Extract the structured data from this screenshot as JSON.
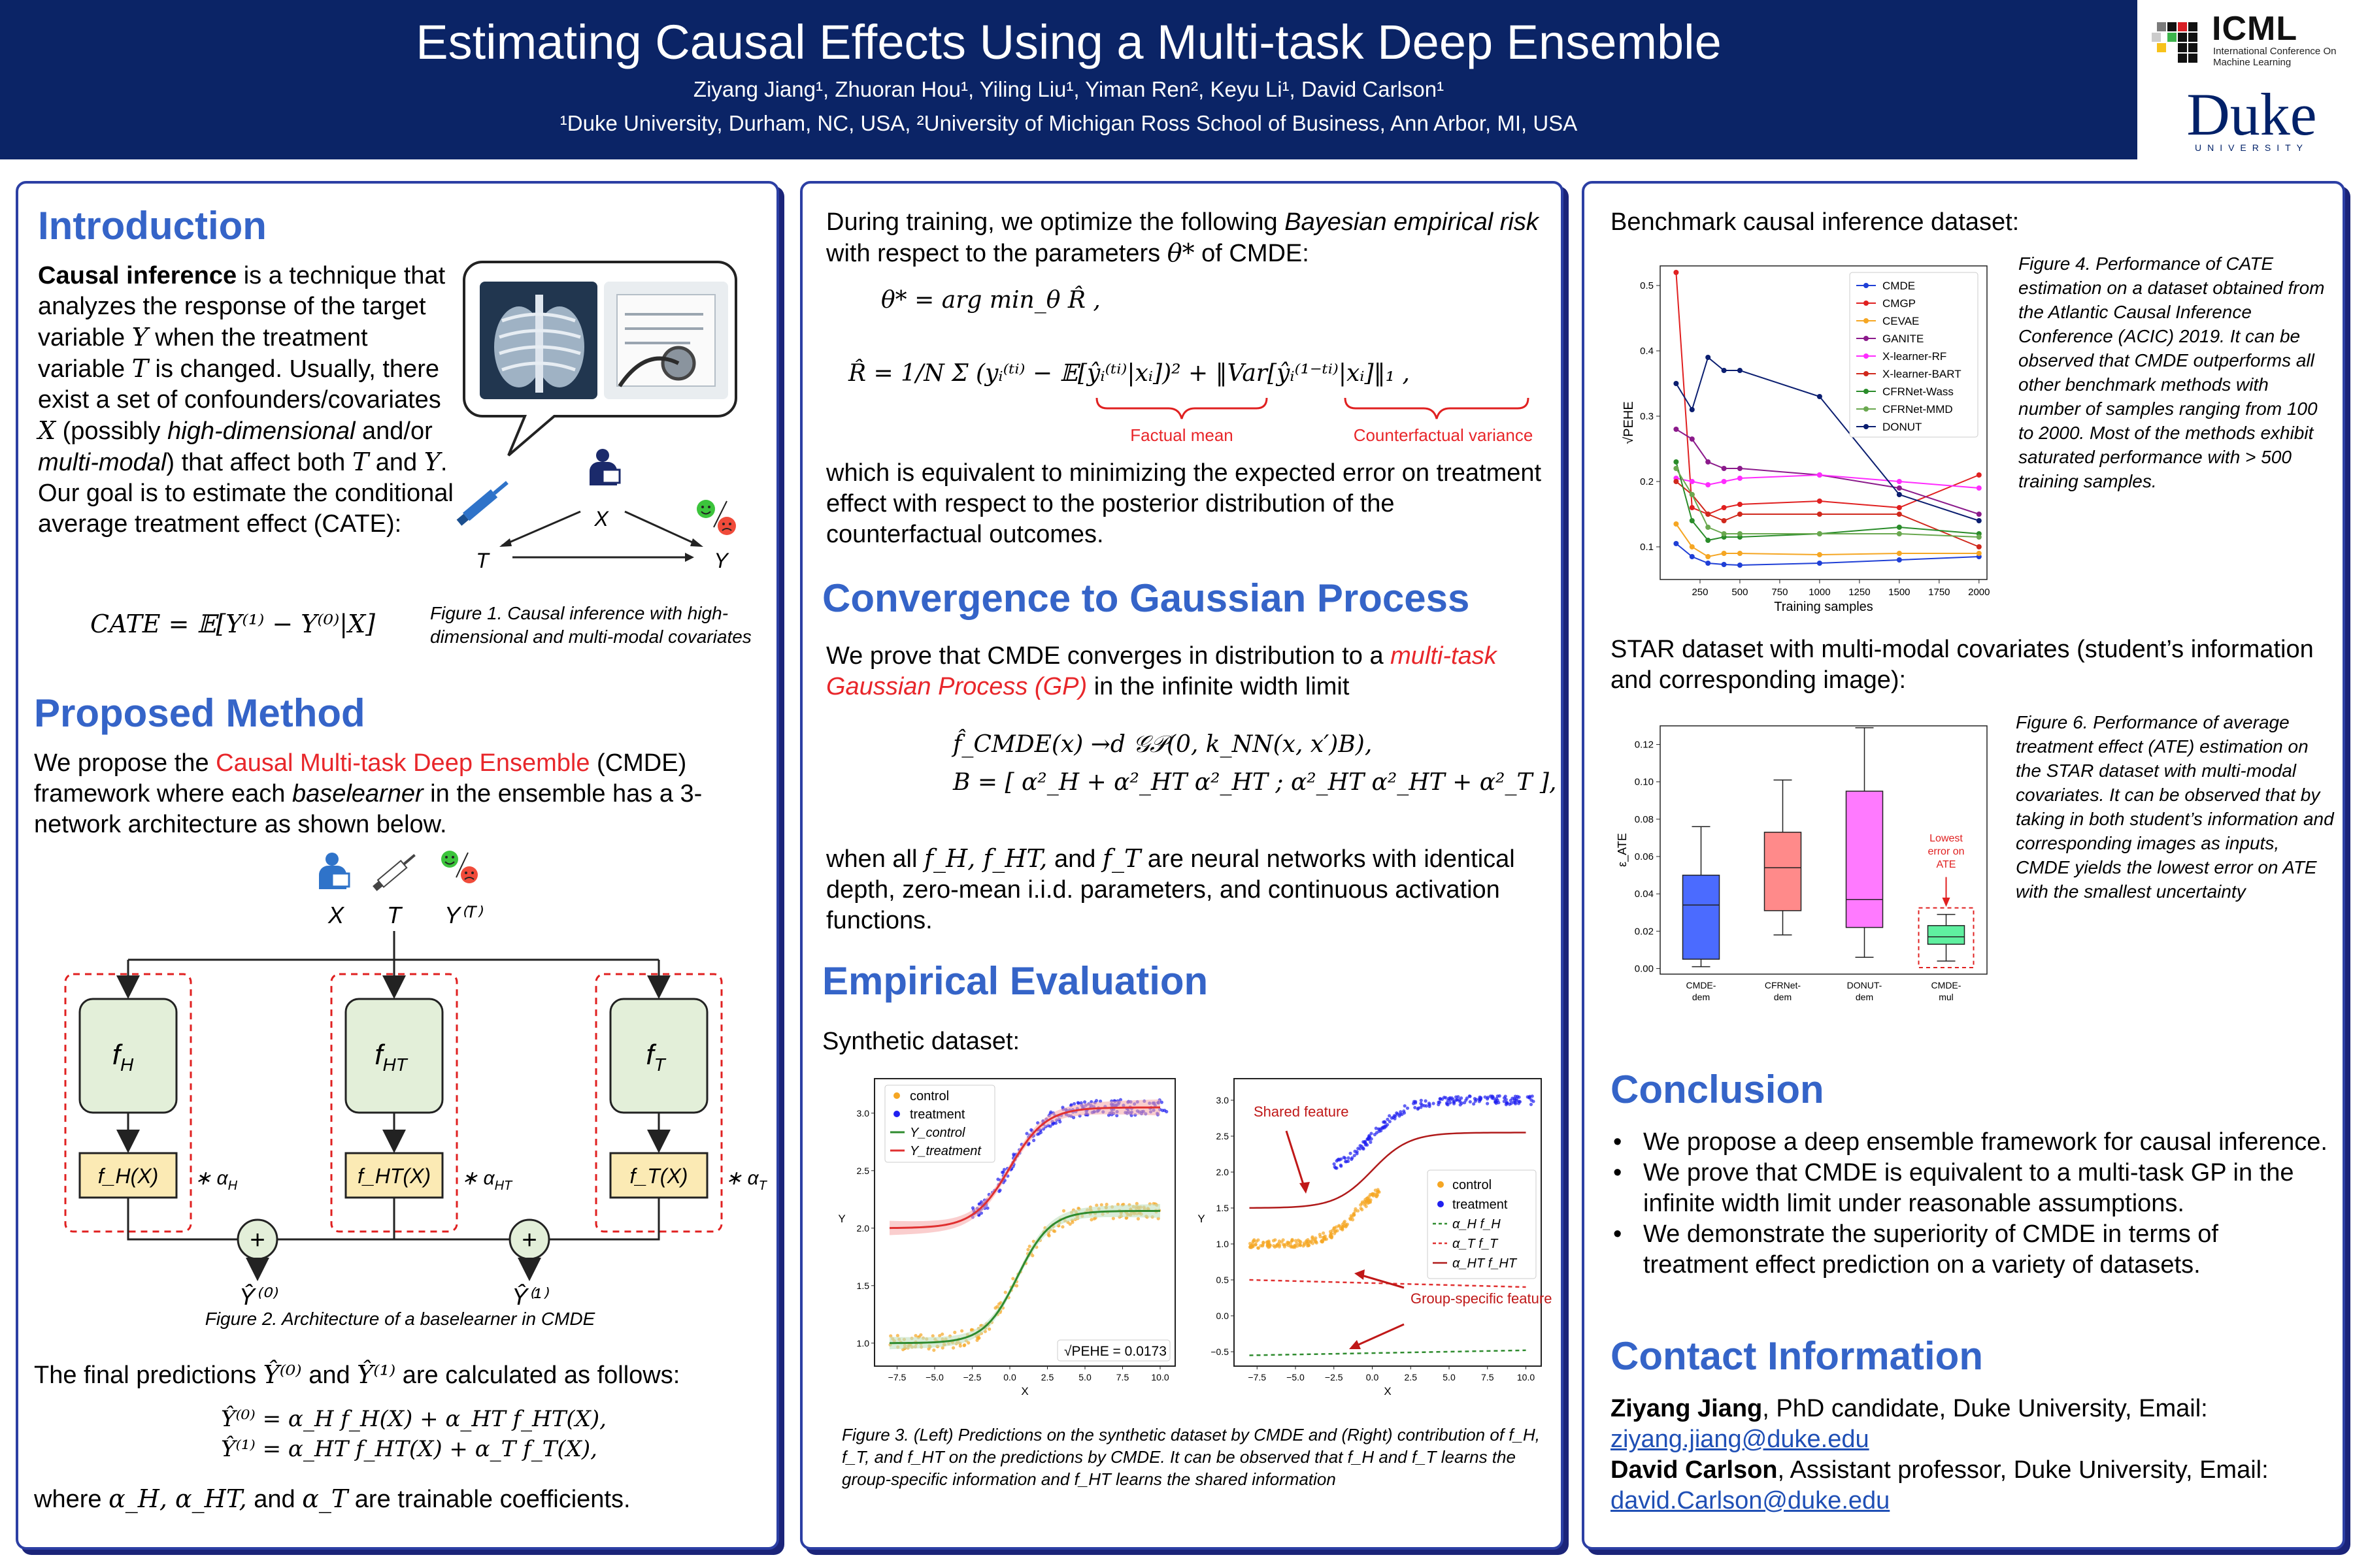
{
  "header": {
    "title": "Estimating Causal Effects Using a Multi-task Deep Ensemble",
    "authors": "Ziyang Jiang¹, Zhuoran Hou¹, Yiling Liu¹, Yiman Ren², Keyu Li¹, David Carlson¹",
    "affiliations": "¹Duke University, Durham, NC, USA, ²University of Michigan Ross School of Business, Ann Arbor, MI, USA",
    "icml_word": "ICML",
    "icml_sub": "International Conference On Machine Learning",
    "duke_word": "Duke",
    "duke_sub": "UNIVERSITY"
  },
  "col1": {
    "intro_heading": "Introduction",
    "intro_bold": "Causal inference",
    "intro_p1": " is a technique that analyzes the response of the target variable ",
    "intro_Y": "Y",
    "intro_p2": " when the treatment variable ",
    "intro_T": "T",
    "intro_p3": " is changed. Usually, there exist a set of confounders/covariates ",
    "intro_X": "X",
    "intro_p4": " (possibly ",
    "intro_hd": "high-dimensional",
    "intro_p5": " and/or ",
    "intro_mm": "multi-modal",
    "intro_p6": ") that affect both ",
    "intro_p7": " and ",
    "intro_p8": ". Our goal is to estimate the conditional average treatment effect (CATE):",
    "cate_eq": "CATE = 𝔼[Y⁽¹⁾ − Y⁽⁰⁾|X]",
    "fig1_X": "X",
    "fig1_T": "T",
    "fig1_Y": "Y",
    "fig1_caption": "Figure 1. Causal inference with high-dimensional and multi-modal covariates",
    "method_heading": "Proposed Method",
    "method_p1": "We propose the ",
    "method_red": "Causal Multi-task Deep Ensemble",
    "method_p2": " (CMDE) framework where each ",
    "method_it": "baselearner",
    "method_p3": " in the ensemble has a 3-network architecture as shown below.",
    "arch_X": "X",
    "arch_T": "T",
    "arch_YT": "Y⁽ᵀ⁾",
    "net_fH": "f",
    "net_fH_sub": "H",
    "net_fHT": "f",
    "net_fHT_sub": "HT",
    "net_fT": "f",
    "net_fT_sub": "T",
    "out_fH": "f_H(X)",
    "out_fHT": "f_HT(X)",
    "out_fT": "f_T(X)",
    "coef_H": "∗ α",
    "coef_H_sub": "H",
    "coef_HT": "∗ α",
    "coef_HT_sub": "HT",
    "coef_T": "∗ α",
    "coef_T_sub": "T",
    "plus": "+",
    "y0": "Ŷ⁽⁰⁾",
    "y1": "Ŷ⁽¹⁾",
    "fig2_caption": "Figure 2. Architecture of a baselearner in CMDE",
    "final_p1": "The final predictions ",
    "final_y0": "Ŷ⁽⁰⁾",
    "final_and": " and ",
    "final_y1": "Ŷ⁽¹⁾",
    "final_p2": " are calculated as follows:",
    "eq_y0": "Ŷ⁽⁰⁾ = α_H f_H(X) + α_HT f_HT(X),",
    "eq_y1": "Ŷ⁽¹⁾ = α_HT f_HT(X) + α_T f_T(X),",
    "where_p1": "where ",
    "where_coefs": "α_H, α_HT,",
    "where_p2": " and ",
    "where_aT": "α_T",
    "where_p3": " are trainable coefficients."
  },
  "col2": {
    "train_p1": "During training, we optimize the following ",
    "train_it": "Bayesian empirical risk",
    "train_p2": " with respect to the parameters ",
    "train_theta": "θ*",
    "train_p3": " of CMDE:",
    "eq_theta": "θ* = arg min_θ R̂ ,",
    "eq_risk_lhs": "R̂ = 1/N Σ (yᵢ⁽ᵗⁱ⁾ − 𝔼[ŷᵢ⁽ᵗⁱ⁾|xᵢ])² + ‖Var[ŷᵢ⁽¹⁻ᵗⁱ⁾|xᵢ]‖₁ ,",
    "factual_mean": "Factual mean",
    "counterfactual_variance": "Counterfactual variance",
    "equiv_text": "which is equivalent to minimizing the expected error on treatment effect with respect to the posterior distribution of the counterfactual outcomes.",
    "gp_heading": "Convergence to Gaussian Process",
    "gp_p1": "We prove that CMDE converges in distribution to a ",
    "gp_red": "multi-task Gaussian Process (GP)",
    "gp_p2": " in the infinite width limit",
    "gp_eq1": "f̂_CMDE(x) →d 𝒢𝒫(0, k_NN(x, x′)B),",
    "gp_eq2": "B = [ α²_H + α²_HT    α²_HT ; α²_HT    α²_HT + α²_T ],",
    "when_p1": "when all ",
    "when_fs": "f_H, f_HT,",
    "when_p2": " and ",
    "when_fT": "f_T",
    "when_p3": " are neural networks with identical depth, zero-mean i.i.d. parameters, and continuous activation functions.",
    "eval_heading": "Empirical Evaluation",
    "synthetic_label": "Synthetic dataset:",
    "plotL_legend": [
      "control",
      "treatment",
      "Y_control",
      "Y_treatment"
    ],
    "plotL_pehe": "√PEHE = 0.0173",
    "plotR_legend": [
      "control",
      "treatment",
      "α_H f_H",
      "α_T f_T",
      "α_HT f_HT"
    ],
    "plotR_shared": "Shared feature",
    "plotR_group": "Group-specific feature",
    "fig3_caption": "Figure 3. (Left) Predictions on the synthetic dataset by CMDE and (Right) contribution of f_H, f_T, and f_HT on the predictions by CMDE. It can be observed that f_H and f_T learns the group-specific information and f_HT learns the shared information"
  },
  "col3": {
    "bench_label": "Benchmark causal inference dataset:",
    "fig4_caption": "Figure 4. Performance of CATE estimation on a dataset obtained from the Atlantic Causal Inference Conference (ACIC) 2019. It can be observed that CMDE outperforms all other benchmark methods with number of samples ranging from 100 to 2000. Most of the methods exhibit saturated performance with > 500 training samples.",
    "star_label": "STAR dataset with multi-modal covariates (student’s information and corresponding image):",
    "fig6_caption": "Figure 6. Performance of average treatment effect (ATE) estimation on the STAR dataset with multi-modal covariates. It can be observed that by taking in both student’s information and corresponding images as inputs, CMDE yields the lowest error on ATE with the smallest uncertainty",
    "lowest_note": "Lowest error on ATE",
    "conclusion_heading": "Conclusion",
    "conclusion_items": [
      "We propose a deep ensemble framework for causal inference.",
      "We prove that CMDE is equivalent to a multi-task GP in the infinite width limit under reasonable assumptions.",
      "We demonstrate the superiority of CMDE in terms of treatment effect prediction on a variety of datasets."
    ],
    "contact_heading": "Contact Information",
    "contact1_name": "Ziyang Jiang",
    "contact1_role": ", PhD candidate, Duke University, Email:",
    "contact1_email": "ziyang.jiang@duke.edu",
    "contact2_name": "David Carlson",
    "contact2_role": ", Assistant professor, Duke University, Email:",
    "contact2_email": "david.Carlson@duke.edu"
  },
  "chart_data": [
    {
      "type": "line",
      "id": "fig4",
      "xlabel": "Training samples",
      "ylabel": "√PEHE",
      "xlim": [
        0,
        2050
      ],
      "ylim": [
        0.05,
        0.53
      ],
      "xticks": [
        250,
        500,
        750,
        1000,
        1250,
        1500,
        1750,
        2000
      ],
      "yticks": [
        0.1,
        0.2,
        0.3,
        0.4,
        0.5
      ],
      "legend": "top-right",
      "x": [
        100,
        200,
        300,
        400,
        500,
        1000,
        1500,
        2000
      ],
      "series": [
        {
          "name": "CMDE",
          "color": "#1f3fd6",
          "marker": "circle",
          "values": [
            0.105,
            0.085,
            0.075,
            0.073,
            0.072,
            0.075,
            0.08,
            0.085
          ]
        },
        {
          "name": "CMGP",
          "color": "#e02020",
          "marker": "triangle",
          "values": [
            0.52,
            0.16,
            0.15,
            0.16,
            0.165,
            0.17,
            0.16,
            0.21
          ]
        },
        {
          "name": "CEVAE",
          "color": "#f5a623",
          "marker": "triangle-down",
          "values": [
            0.135,
            0.1,
            0.085,
            0.09,
            0.09,
            0.088,
            0.09,
            0.09
          ]
        },
        {
          "name": "GANITE",
          "color": "#8b1a8b",
          "marker": "square",
          "values": [
            0.28,
            0.265,
            0.23,
            0.22,
            0.22,
            0.21,
            0.19,
            0.15
          ]
        },
        {
          "name": "X-learner-RF",
          "color": "#ff2bff",
          "marker": "diamond",
          "values": [
            0.205,
            0.2,
            0.195,
            0.2,
            0.205,
            0.21,
            0.2,
            0.19
          ]
        },
        {
          "name": "X-learner-BART",
          "color": "#d0281c",
          "marker": "x",
          "values": [
            0.2,
            0.18,
            0.15,
            0.14,
            0.15,
            0.15,
            0.15,
            0.1
          ]
        },
        {
          "name": "CFRNet-Wass",
          "color": "#2a8c2a",
          "marker": "circle",
          "values": [
            0.23,
            0.14,
            0.11,
            0.115,
            0.115,
            0.12,
            0.13,
            0.12
          ]
        },
        {
          "name": "CFRNet-MMD",
          "color": "#6aa84f",
          "marker": "circle",
          "values": [
            0.22,
            0.18,
            0.13,
            0.12,
            0.12,
            0.12,
            0.12,
            0.115
          ]
        },
        {
          "name": "DONUT",
          "color": "#0b1e70",
          "marker": "circle",
          "values": [
            0.35,
            0.31,
            0.39,
            0.37,
            0.37,
            0.33,
            0.18,
            0.14
          ]
        }
      ]
    },
    {
      "type": "box",
      "id": "fig6",
      "ylabel": "ε_ATE",
      "ylim": [
        -0.003,
        0.13
      ],
      "yticks": [
        0.0,
        0.02,
        0.04,
        0.06,
        0.08,
        0.1,
        0.12
      ],
      "categories": [
        "CMDE-dem",
        "CFRNet-dem",
        "DONUT-dem",
        "CMDE-mul"
      ],
      "colors": [
        "#4b6bff",
        "#ff8a8a",
        "#ff7aff",
        "#5ff0a0"
      ],
      "boxes": [
        {
          "min": 0.001,
          "q1": 0.005,
          "median": 0.034,
          "q3": 0.05,
          "max": 0.076
        },
        {
          "min": 0.018,
          "q1": 0.031,
          "median": 0.054,
          "q3": 0.073,
          "max": 0.101
        },
        {
          "min": 0.006,
          "q1": 0.022,
          "median": 0.037,
          "q3": 0.095,
          "max": 0.129
        },
        {
          "min": 0.004,
          "q1": 0.013,
          "median": 0.017,
          "q3": 0.023,
          "max": 0.029
        }
      ]
    },
    {
      "type": "scatter",
      "id": "fig3-left",
      "xlabel": "X",
      "ylabel": "Y",
      "xlim": [
        -9,
        11
      ],
      "ylim": [
        0.8,
        3.3
      ],
      "xticks": [
        -7.5,
        -5.0,
        -2.5,
        0.0,
        2.5,
        5.0,
        7.5,
        10.0
      ],
      "yticks": [
        1.0,
        1.5,
        2.0,
        2.5,
        3.0
      ],
      "legend": "top-left",
      "series": [
        {
          "name": "Y_control",
          "color": "#2e8b2e",
          "curve": "sigmoid",
          "low": 1.0,
          "high": 2.15,
          "mid": 0.5,
          "scale": 1.1
        },
        {
          "name": "Y_treatment",
          "color": "#e03030",
          "curve": "sigmoid",
          "low": 2.0,
          "high": 3.05,
          "mid": 0.0,
          "scale": 1.2
        }
      ]
    },
    {
      "type": "scatter",
      "id": "fig3-right",
      "xlabel": "X",
      "ylabel": "Y",
      "xlim": [
        -9,
        11
      ],
      "ylim": [
        -0.7,
        3.3
      ],
      "xticks": [
        -7.5,
        -5.0,
        -2.5,
        0.0,
        2.5,
        5.0,
        7.5,
        10.0
      ],
      "yticks": [
        -0.5,
        0.0,
        0.5,
        1.0,
        1.5,
        2.0,
        2.5,
        3.0
      ],
      "legend": "right",
      "series": [
        {
          "name": "α_HT f_HT",
          "color": "#b01a1a",
          "curve": "sigmoid",
          "low": 1.5,
          "high": 2.55,
          "mid": 0.0,
          "scale": 1.2
        },
        {
          "name": "α_T f_T",
          "color": "#e03030",
          "curve": "line",
          "from": 0.5,
          "to": 0.4
        },
        {
          "name": "α_H f_H",
          "color": "#2e8b2e",
          "curve": "line",
          "from": -0.55,
          "to": -0.48
        }
      ]
    }
  ]
}
